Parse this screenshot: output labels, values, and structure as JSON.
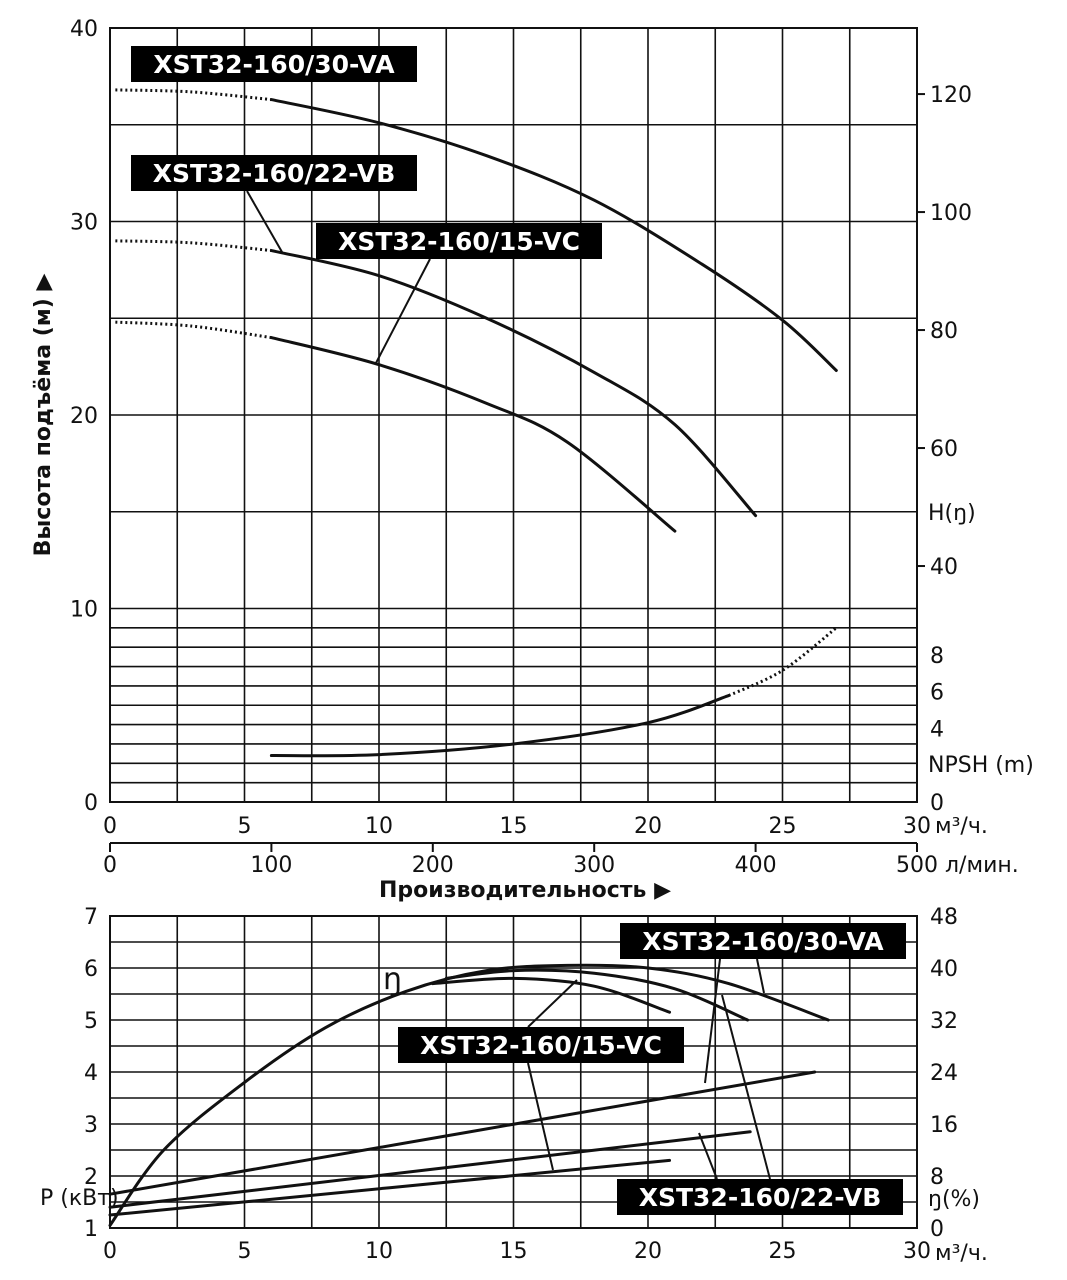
{
  "chart_data": [
    {
      "type": "line",
      "title": "",
      "ylabel": "Высота подъёма (м) ▶",
      "xlabel": "Производительность ▶",
      "x_unit": "м³/ч.",
      "x2_unit": "л/мин.",
      "xlim": [
        0,
        30
      ],
      "x_ticks": [
        "0",
        "5",
        "10",
        "15",
        "20",
        "25",
        "30"
      ],
      "x2_ticks": [
        "0",
        "100",
        "200",
        "300",
        "400",
        "500"
      ],
      "ylim": [
        0,
        40
      ],
      "y_ticks": [
        "0",
        "10",
        "20",
        "30",
        "40"
      ],
      "right_head_ticks": [
        "40",
        "60",
        "80",
        "100",
        "120"
      ],
      "right_head_label": "H(ŋ)",
      "right_npsh_ticks": [
        "0",
        "4",
        "6",
        "8"
      ],
      "right_npsh_label": "NPSH (m)",
      "grid": true,
      "series": [
        {
          "name": "XST32-160/30-VA",
          "solid": [
            [
              6,
              36.3
            ],
            [
              10,
              35.1
            ],
            [
              14,
              33.4
            ],
            [
              18,
              31.1
            ],
            [
              22,
              27.8
            ],
            [
              25,
              24.9
            ],
            [
              27,
              22.3
            ]
          ],
          "dotted": [
            [
              0.2,
              36.8
            ],
            [
              3,
              36.7
            ],
            [
              6,
              36.3
            ]
          ]
        },
        {
          "name": "XST32-160/22-VB",
          "solid": [
            [
              6,
              28.5
            ],
            [
              10,
              27.2
            ],
            [
              14,
              25.0
            ],
            [
              18,
              22.2
            ],
            [
              21,
              19.5
            ],
            [
              24,
              14.8
            ]
          ],
          "dotted": [
            [
              0.2,
              29.0
            ],
            [
              3,
              28.9
            ],
            [
              6,
              28.5
            ]
          ]
        },
        {
          "name": "XST32-160/15-VC",
          "solid": [
            [
              6,
              24.0
            ],
            [
              10,
              22.6
            ],
            [
              14,
              20.6
            ],
            [
              17,
              18.6
            ],
            [
              21,
              14.0
            ]
          ],
          "dotted": [
            [
              0.2,
              24.8
            ],
            [
              3,
              24.6
            ],
            [
              6,
              24.0
            ]
          ]
        },
        {
          "name": "NPSH",
          "solid": [
            [
              6,
              2.4
            ],
            [
              10,
              2.45
            ],
            [
              15,
              3.0
            ],
            [
              20,
              4.1
            ],
            [
              23,
              5.5
            ]
          ],
          "dotted": [
            [
              23,
              5.5
            ],
            [
              25,
              6.8
            ],
            [
              27,
              9.0
            ]
          ]
        }
      ]
    },
    {
      "type": "line",
      "title": "",
      "ylabel": "P (кВт)",
      "x_unit": "м³/ч.",
      "xlim": [
        0,
        30
      ],
      "x_ticks": [
        "0",
        "5",
        "10",
        "15",
        "20",
        "25",
        "30"
      ],
      "ylim": [
        1,
        7
      ],
      "y_ticks": [
        "1",
        "2",
        "3",
        "4",
        "5",
        "6",
        "7"
      ],
      "right_label": "ŋ(%)",
      "right_lim": [
        0,
        48
      ],
      "right_ticks": [
        "0",
        "8",
        "16",
        "24",
        "32",
        "40",
        "48"
      ],
      "eta_symbol": "ŋ",
      "grid": true,
      "series": [
        {
          "name": "XST32-160/30-VA",
          "kind": "power",
          "points": [
            [
              0,
              1.65
            ],
            [
              26.2,
              4.0
            ]
          ]
        },
        {
          "name": "XST32-160/22-VB",
          "kind": "power",
          "points": [
            [
              0,
              1.4
            ],
            [
              23.8,
              2.85
            ]
          ]
        },
        {
          "name": "XST32-160/15-VC",
          "kind": "power",
          "points": [
            [
              0,
              1.25
            ],
            [
              20.8,
              2.3
            ]
          ]
        },
        {
          "name": "XST32-160/30-VA",
          "kind": "efficiency",
          "points": [
            [
              0,
              1.05
            ],
            [
              2,
              2.5
            ],
            [
              5,
              3.8
            ],
            [
              8,
              4.85
            ],
            [
              11,
              5.55
            ],
            [
              14,
              5.95
            ],
            [
              17,
              6.05
            ],
            [
              20,
              6.0
            ],
            [
              23,
              5.7
            ],
            [
              26.7,
              5.0
            ]
          ]
        },
        {
          "name": "XST32-160/22-VB",
          "kind": "efficiency",
          "points": [
            [
              12.5,
              5.8
            ],
            [
              15,
              5.95
            ],
            [
              18,
              5.9
            ],
            [
              21,
              5.6
            ],
            [
              23.7,
              5.0
            ]
          ]
        },
        {
          "name": "XST32-160/15-VC",
          "kind": "efficiency",
          "points": [
            [
              12,
              5.7
            ],
            [
              15,
              5.8
            ],
            [
              18,
              5.65
            ],
            [
              20.8,
              5.15
            ]
          ]
        }
      ]
    }
  ],
  "labels": {
    "va": "XST32-160/30-VA",
    "vb": "XST32-160/22-VB",
    "vc": "XST32-160/15-VC"
  }
}
